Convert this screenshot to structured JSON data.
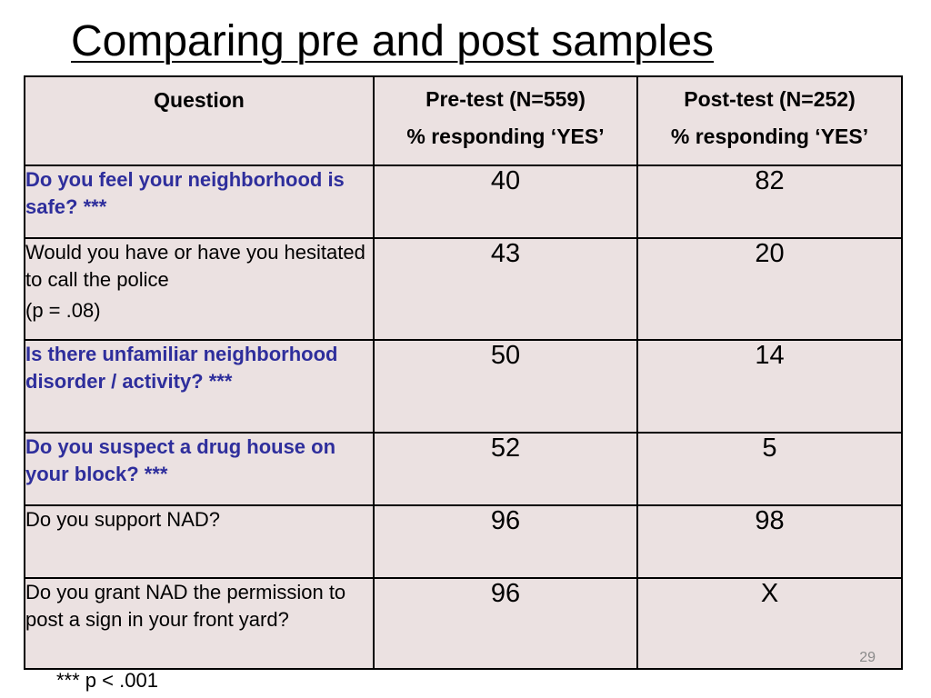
{
  "title": "Comparing pre and post samples",
  "table": {
    "headers": {
      "question": "Question",
      "pre_line1": "Pre-test (N=559)",
      "pre_line2": "% responding ‘YES’",
      "post_line1": "Post-test (N=252)",
      "post_line2": "% responding ‘YES’"
    },
    "rows": [
      {
        "question": "Do you feel your neighborhood is safe? ***",
        "note": "",
        "pre": "40",
        "post": "82"
      },
      {
        "question": "Would you have or have you hesitated to call the police",
        "note": "(p = .08)",
        "pre": "43",
        "post": "20"
      },
      {
        "question": "Is there unfamiliar neighborhood disorder / activity?  ***",
        "note": "",
        "pre": "50",
        "post": "14"
      },
      {
        "question": "Do you suspect a drug house on your block?  ***",
        "note": "",
        "pre": "52",
        "post": "5"
      },
      {
        "question": "Do you support NAD?",
        "note": "",
        "pre": "96",
        "post": "98"
      },
      {
        "question": "Do you grant NAD the permission to post a sign in your front yard?",
        "note": "",
        "pre": "96",
        "post": "X"
      }
    ]
  },
  "styles": {
    "emphasis_color": "#2e2e9c",
    "cell_background": "#ebe1e1"
  },
  "page_number": "29",
  "footnote": "*** p < .001"
}
